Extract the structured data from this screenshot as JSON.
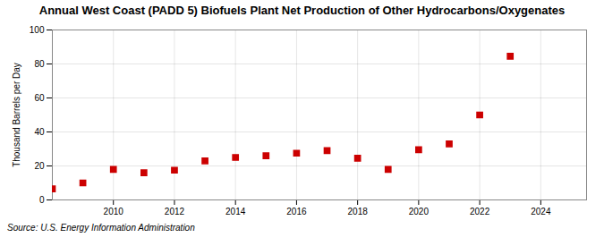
{
  "chart_data": {
    "type": "scatter",
    "title": "Annual West Coast (PADD 5) Biofuels Plant Net Production of Other Hydrocarbons/Oxygenates",
    "ylabel": "Thousand Barrels per Day",
    "source": "Source: U.S. Energy Information Administration",
    "x": [
      2008,
      2009,
      2010,
      2011,
      2012,
      2013,
      2014,
      2015,
      2016,
      2017,
      2018,
      2019,
      2020,
      2021,
      2022,
      2023
    ],
    "values": [
      6.5,
      10.0,
      18.0,
      16.0,
      17.5,
      23.0,
      25.0,
      26.0,
      27.5,
      29.0,
      24.5,
      18.0,
      29.5,
      33.0,
      50.0,
      84.5
    ],
    "color": "#cc0000",
    "marker": "square",
    "xlim": [
      2008.0,
      2025.5
    ],
    "xticks": [
      2010,
      2012,
      2014,
      2016,
      2018,
      2020,
      2022,
      2024
    ],
    "ylim": [
      0,
      100
    ],
    "yticks": [
      0,
      20,
      40,
      60,
      80,
      100
    ],
    "grid": true
  }
}
